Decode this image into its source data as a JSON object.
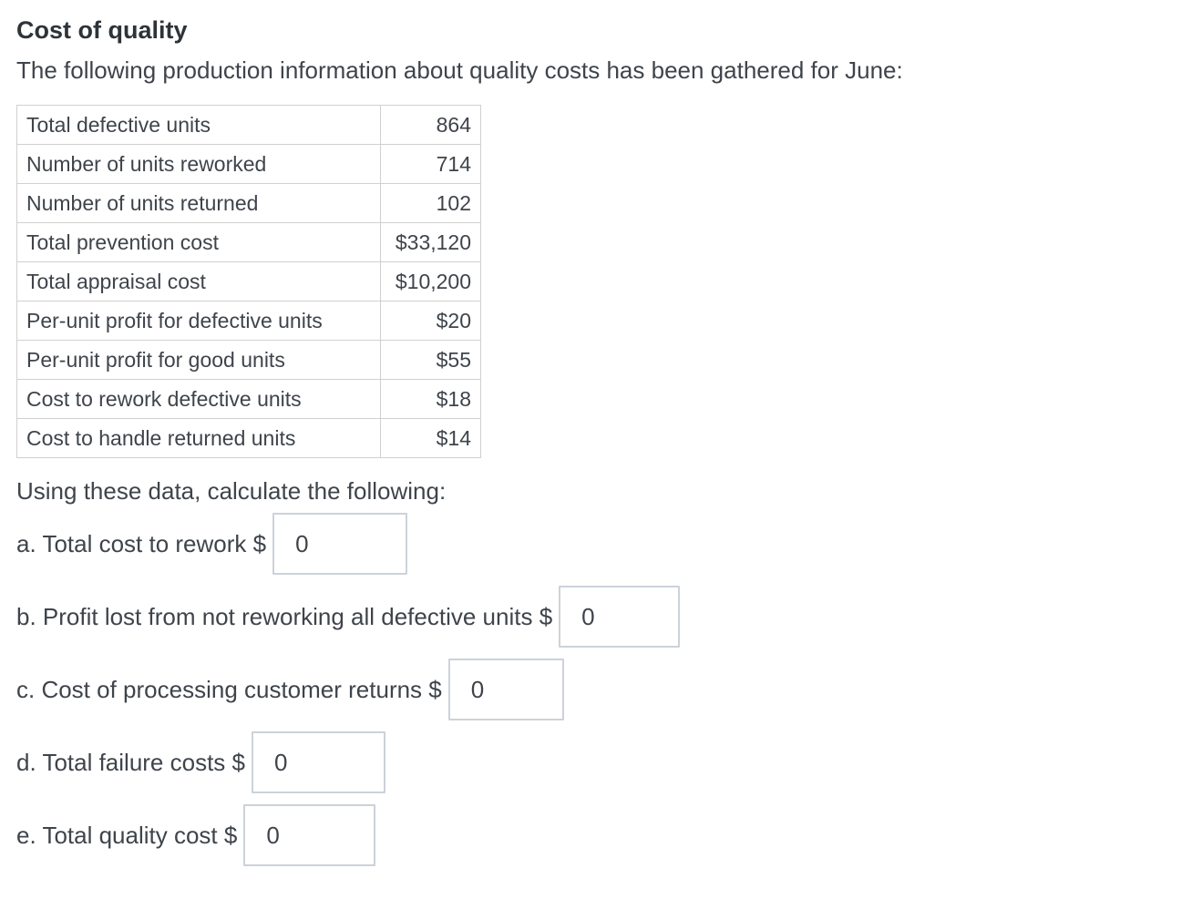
{
  "header": {
    "title": "Cost of quality",
    "intro": "The following production information about quality costs has been gathered for June:"
  },
  "table": {
    "rows": [
      {
        "label": "Total defective units",
        "value": "864"
      },
      {
        "label": "Number of units reworked",
        "value": "714"
      },
      {
        "label": "Number of units returned",
        "value": "102"
      },
      {
        "label": "Total prevention cost",
        "value": "$33,120"
      },
      {
        "label": "Total appraisal cost",
        "value": "$10,200"
      },
      {
        "label": "Per-unit profit for defective units",
        "value": "$20"
      },
      {
        "label": "Per-unit profit for good units",
        "value": "$55"
      },
      {
        "label": "Cost to rework defective units",
        "value": "$18"
      },
      {
        "label": "Cost to handle returned units",
        "value": "$14"
      }
    ]
  },
  "prompt": "Using these data, calculate the following:",
  "questions": [
    {
      "id": "a",
      "label": "a. Total cost to rework $",
      "value": "0"
    },
    {
      "id": "b",
      "label": "b. Profit lost from not reworking all defective units $",
      "value": "0"
    },
    {
      "id": "c",
      "label": "c. Cost of processing customer returns $",
      "value": "0"
    },
    {
      "id": "d",
      "label": "d. Total failure costs $",
      "value": "0"
    },
    {
      "id": "e",
      "label": "e. Total quality cost $",
      "value": "0"
    }
  ],
  "colors": {
    "text": "#3f444b",
    "title": "#2e3338",
    "table_border": "#d0d0d0",
    "input_border": "#ccd2da",
    "background": "#ffffff"
  }
}
